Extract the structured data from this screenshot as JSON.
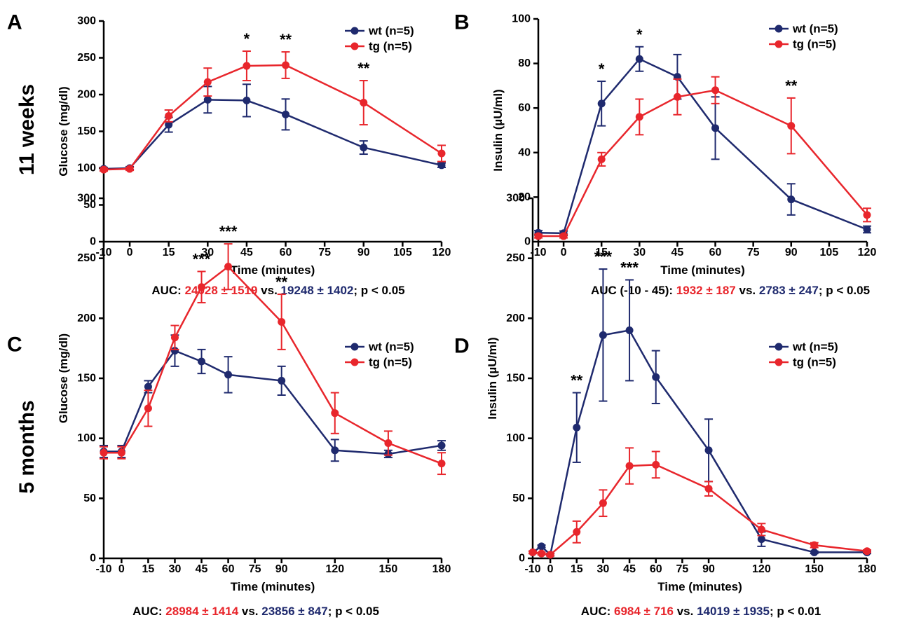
{
  "colors": {
    "wt": "#1f2a6e",
    "tg": "#e8262c",
    "axis": "#000000",
    "text": "#000000"
  },
  "row_labels": [
    "11 weeks",
    "5 months"
  ],
  "chart_data": [
    {
      "id": "A",
      "type": "line",
      "panel_label": "A",
      "xlabel": "Time (minutes)",
      "ylabel": "Glucose (mg/dl)",
      "xlim": [
        -10,
        120
      ],
      "ylim": [
        0,
        300
      ],
      "xticks": [
        -10,
        0,
        15,
        30,
        45,
        60,
        75,
        90,
        105,
        120
      ],
      "yticks": [
        0,
        50,
        100,
        150,
        200,
        250,
        300
      ],
      "x": [
        -10,
        0,
        15,
        30,
        45,
        60,
        90,
        120
      ],
      "series": [
        {
          "name": "wt (n=5)",
          "key": "wt",
          "values": [
            99,
            100,
            159,
            193,
            192,
            173,
            128,
            104
          ],
          "err": [
            2,
            2,
            10,
            18,
            22,
            21,
            9,
            3
          ]
        },
        {
          "name": "tg (n=5)",
          "key": "tg",
          "values": [
            98,
            99,
            171,
            217,
            239,
            240,
            189,
            120
          ],
          "err": [
            2,
            2,
            8,
            19,
            20,
            18,
            30,
            11
          ]
        }
      ],
      "significance": [
        {
          "x": 45,
          "label": "*"
        },
        {
          "x": 60,
          "label": "**"
        },
        {
          "x": 90,
          "label": "**"
        }
      ],
      "auc": {
        "prefix": "AUC:",
        "tg": "24028 ± 1519",
        "vs": "vs.",
        "wt": "19248 ± 1402",
        "p": ";  p < 0.05"
      }
    },
    {
      "id": "B",
      "type": "line",
      "panel_label": "B",
      "xlabel": "Time (minutes)",
      "ylabel": "Insulin (µU/ml)",
      "xlim": [
        -10,
        120
      ],
      "ylim": [
        0,
        100
      ],
      "xticks": [
        -10,
        0,
        15,
        30,
        45,
        60,
        75,
        90,
        105,
        120
      ],
      "yticks": [
        0,
        20,
        40,
        60,
        80,
        100
      ],
      "x": [
        -10,
        0,
        15,
        30,
        45,
        60,
        90,
        120
      ],
      "series": [
        {
          "name": "wt (n=5)",
          "key": "wt",
          "values": [
            4,
            3.8,
            62,
            82,
            74,
            51,
            19,
            5.5
          ],
          "err": [
            1,
            1,
            10,
            5.5,
            10,
            14,
            7,
            1.5
          ]
        },
        {
          "name": "tg (n=5)",
          "key": "tg",
          "values": [
            2.5,
            2.5,
            37,
            56,
            65,
            68,
            52,
            12
          ],
          "err": [
            0.8,
            0.8,
            3,
            8,
            8,
            6,
            12.5,
            3
          ]
        }
      ],
      "significance": [
        {
          "x": 15,
          "label": "*"
        },
        {
          "x": 30,
          "label": "*"
        },
        {
          "x": 90,
          "label": "**"
        }
      ],
      "auc": {
        "prefix": "AUC (-10 - 45):",
        "tg": "1932 ± 187",
        "vs": "vs.",
        "wt": "2783 ± 247",
        "p": ";  p < 0.05"
      }
    },
    {
      "id": "C",
      "type": "line",
      "panel_label": "C",
      "xlabel": "Time (minutes)",
      "ylabel": "Glucose (mg/dl)",
      "xlim": [
        -10,
        180
      ],
      "ylim": [
        0,
        300
      ],
      "xticks": [
        -10,
        0,
        15,
        30,
        45,
        60,
        75,
        90,
        120,
        150,
        180
      ],
      "yticks": [
        0,
        50,
        100,
        150,
        200,
        250,
        300
      ],
      "x": [
        -10,
        0,
        15,
        30,
        45,
        60,
        90,
        120,
        150,
        180
      ],
      "series": [
        {
          "name": "wt (n=5)",
          "key": "wt",
          "values": [
            89,
            89,
            143,
            173,
            164,
            153,
            148,
            90,
            87,
            94
          ],
          "err": [
            5,
            5,
            5,
            13,
            10,
            15,
            12,
            9,
            3,
            4
          ]
        },
        {
          "name": "tg (n=5)",
          "key": "tg",
          "values": [
            88,
            88,
            125,
            184,
            226,
            243,
            197,
            121,
            96,
            79
          ],
          "err": [
            5,
            5,
            15,
            10,
            13,
            19,
            23,
            17,
            10,
            9
          ]
        }
      ],
      "significance": [
        {
          "x": 45,
          "label": "***"
        },
        {
          "x": 60,
          "label": "***"
        },
        {
          "x": 90,
          "label": "**"
        }
      ],
      "auc": {
        "prefix": "AUC:",
        "tg": "28984 ± 1414",
        "vs": "vs.",
        "wt": "23856 ± 847",
        "p": ";  p < 0.05"
      }
    },
    {
      "id": "D",
      "type": "line",
      "panel_label": "D",
      "xlabel": "Time (minutes)",
      "ylabel": "Insulin (µU/ml)",
      "xlim": [
        -10,
        180
      ],
      "ylim": [
        0,
        300
      ],
      "xticks": [
        -10,
        0,
        15,
        30,
        45,
        60,
        75,
        90,
        120,
        150,
        180
      ],
      "yticks": [
        0,
        50,
        100,
        150,
        200,
        250,
        300
      ],
      "x": [
        -10,
        -5,
        0,
        15,
        30,
        45,
        60,
        90,
        120,
        150,
        180
      ],
      "series": [
        {
          "name": "wt (n=5)",
          "key": "wt",
          "values": [
            5,
            10,
            3,
            109,
            186,
            190,
            151,
            90,
            16,
            5,
            5
          ],
          "err": [
            1,
            1,
            1,
            29,
            55,
            42,
            22,
            26,
            6,
            1,
            1
          ]
        },
        {
          "name": "tg (n=5)",
          "key": "tg",
          "values": [
            5,
            4,
            3,
            22,
            46,
            77,
            78,
            58,
            24,
            11,
            6
          ],
          "err": [
            1,
            1,
            1,
            9,
            11,
            15,
            11,
            6,
            5,
            2,
            1
          ]
        }
      ],
      "significance": [
        {
          "x": 15,
          "label": "**"
        },
        {
          "x": 30,
          "label": "***"
        },
        {
          "x": 45,
          "label": "***"
        }
      ],
      "auc": {
        "prefix": "AUC:",
        "tg": "6984 ± 716",
        "vs": "vs.",
        "wt": "14019 ± 1935",
        "p": ";  p < 0.01"
      }
    }
  ]
}
